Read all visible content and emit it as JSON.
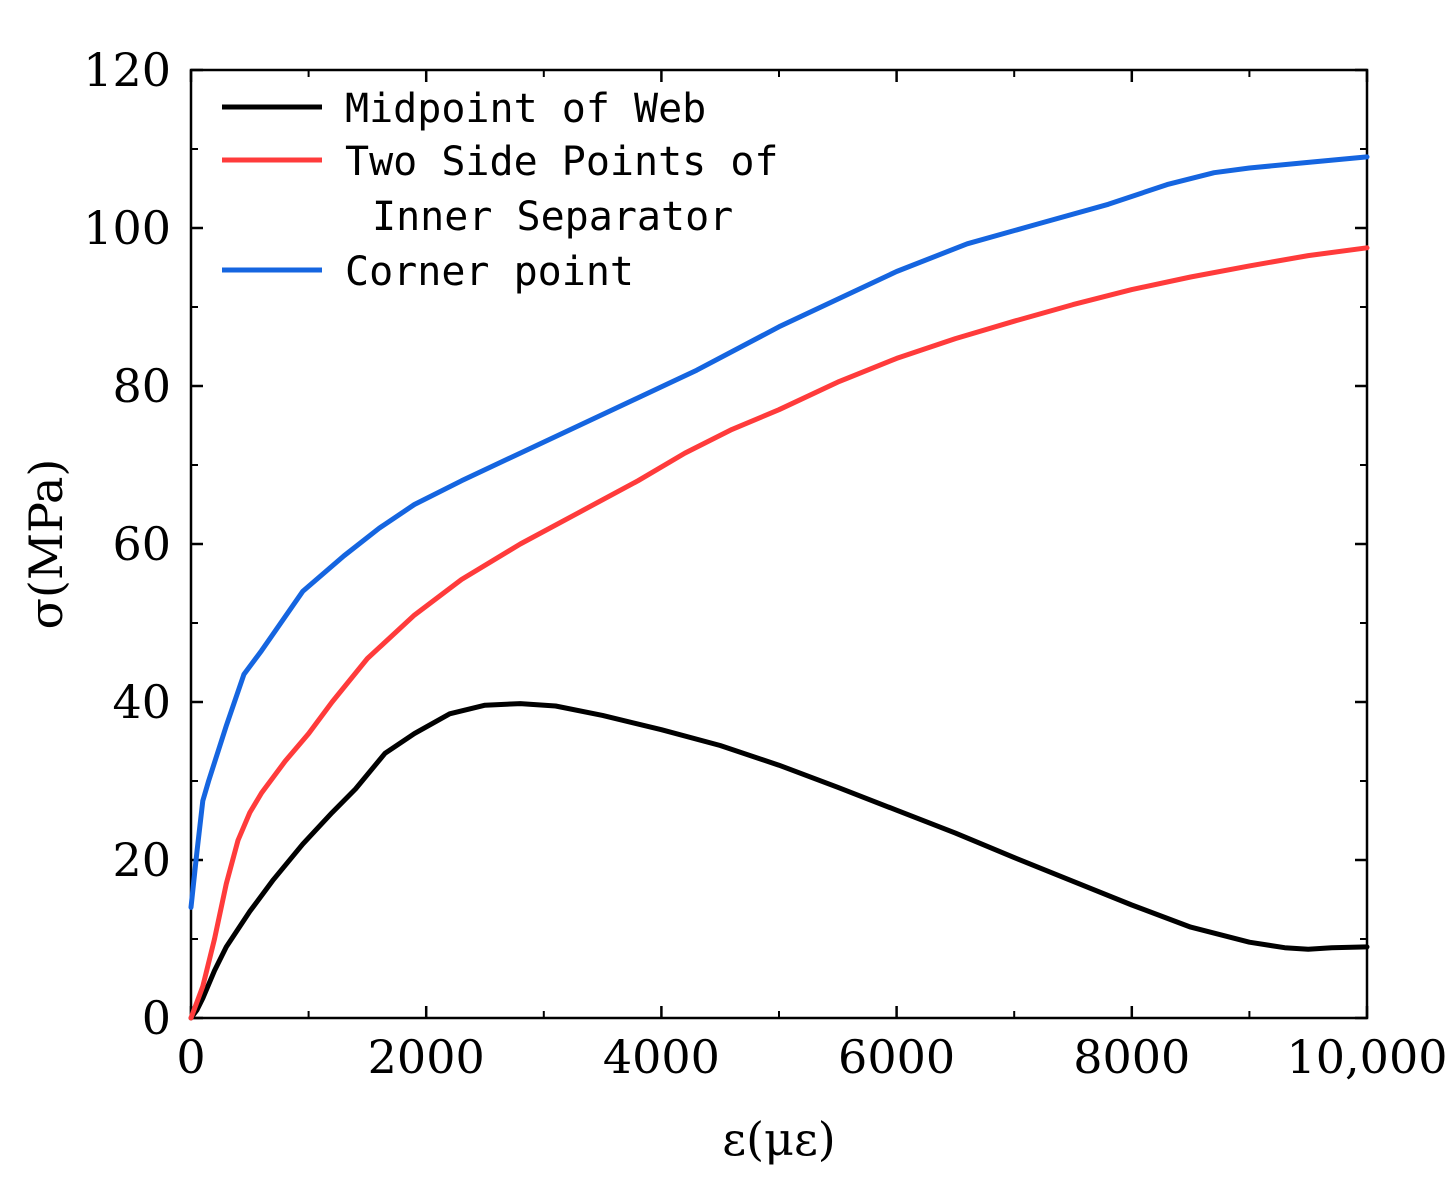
{
  "chart_data": {
    "type": "line",
    "title": "",
    "xlabel": "ε(με)",
    "ylabel": "σ(MPa)",
    "xlim": [
      0,
      10000
    ],
    "ylim": [
      0,
      120
    ],
    "x_ticks": [
      0,
      2000,
      4000,
      6000,
      8000,
      10000
    ],
    "x_tick_labels": [
      "0",
      "2000",
      "4000",
      "6000",
      "8000",
      "10,000"
    ],
    "y_ticks": [
      0,
      20,
      40,
      60,
      80,
      100,
      120
    ],
    "y_tick_labels": [
      "0",
      "20",
      "40",
      "60",
      "80",
      "100",
      "120"
    ],
    "grid": false,
    "legend_position": "top-left",
    "series": [
      {
        "name": "Midpoint of Web",
        "color": "#000000",
        "x": [
          0,
          50,
          100,
          200,
          300,
          500,
          700,
          950,
          1200,
          1400,
          1650,
          1900,
          2200,
          2500,
          2800,
          3100,
          3500,
          4000,
          4500,
          5000,
          5500,
          6000,
          6500,
          7000,
          7500,
          8000,
          8500,
          9000,
          9300,
          9500,
          9700,
          10000
        ],
        "y": [
          0,
          1,
          2.5,
          6,
          9,
          13.5,
          17.5,
          22,
          26,
          29,
          33.5,
          36,
          38.5,
          39.6,
          39.8,
          39.5,
          38.3,
          36.5,
          34.5,
          32,
          29.2,
          26.3,
          23.4,
          20.3,
          17.3,
          14.3,
          11.5,
          9.6,
          8.9,
          8.7,
          8.9,
          9
        ]
      },
      {
        "name": "Two Side Points of Inner Separator",
        "color": "#ff3b3b",
        "x": [
          0,
          50,
          100,
          200,
          300,
          400,
          500,
          600,
          800,
          1000,
          1200,
          1500,
          1900,
          2300,
          2800,
          3300,
          3800,
          4200,
          4600,
          5000,
          5500,
          6000,
          6500,
          7000,
          7500,
          8000,
          8500,
          9000,
          9500,
          10000
        ],
        "y": [
          0,
          2,
          4,
          10,
          17,
          22.5,
          26,
          28.5,
          32.5,
          36,
          40,
          45.5,
          51,
          55.5,
          60,
          64,
          68,
          71.5,
          74.5,
          77,
          80.5,
          83.5,
          86,
          88.2,
          90.3,
          92.2,
          93.8,
          95.2,
          96.5,
          97.5
        ]
      },
      {
        "name": "Corner point",
        "color": "#1565e0",
        "x": [
          0,
          50,
          100,
          150,
          300,
          450,
          600,
          950,
          1300,
          1600,
          1900,
          2300,
          2800,
          3300,
          3800,
          4300,
          5000,
          5500,
          6000,
          6600,
          7200,
          7800,
          8300,
          8700,
          9000,
          9500,
          10000
        ],
        "y": [
          14,
          21,
          27.5,
          30,
          37,
          43.5,
          46.5,
          54,
          58.5,
          62,
          65,
          68,
          71.5,
          75,
          78.5,
          82,
          87.5,
          91,
          94.5,
          98,
          100.5,
          103,
          105.5,
          107,
          107.6,
          108.3,
          109
        ]
      }
    ]
  }
}
